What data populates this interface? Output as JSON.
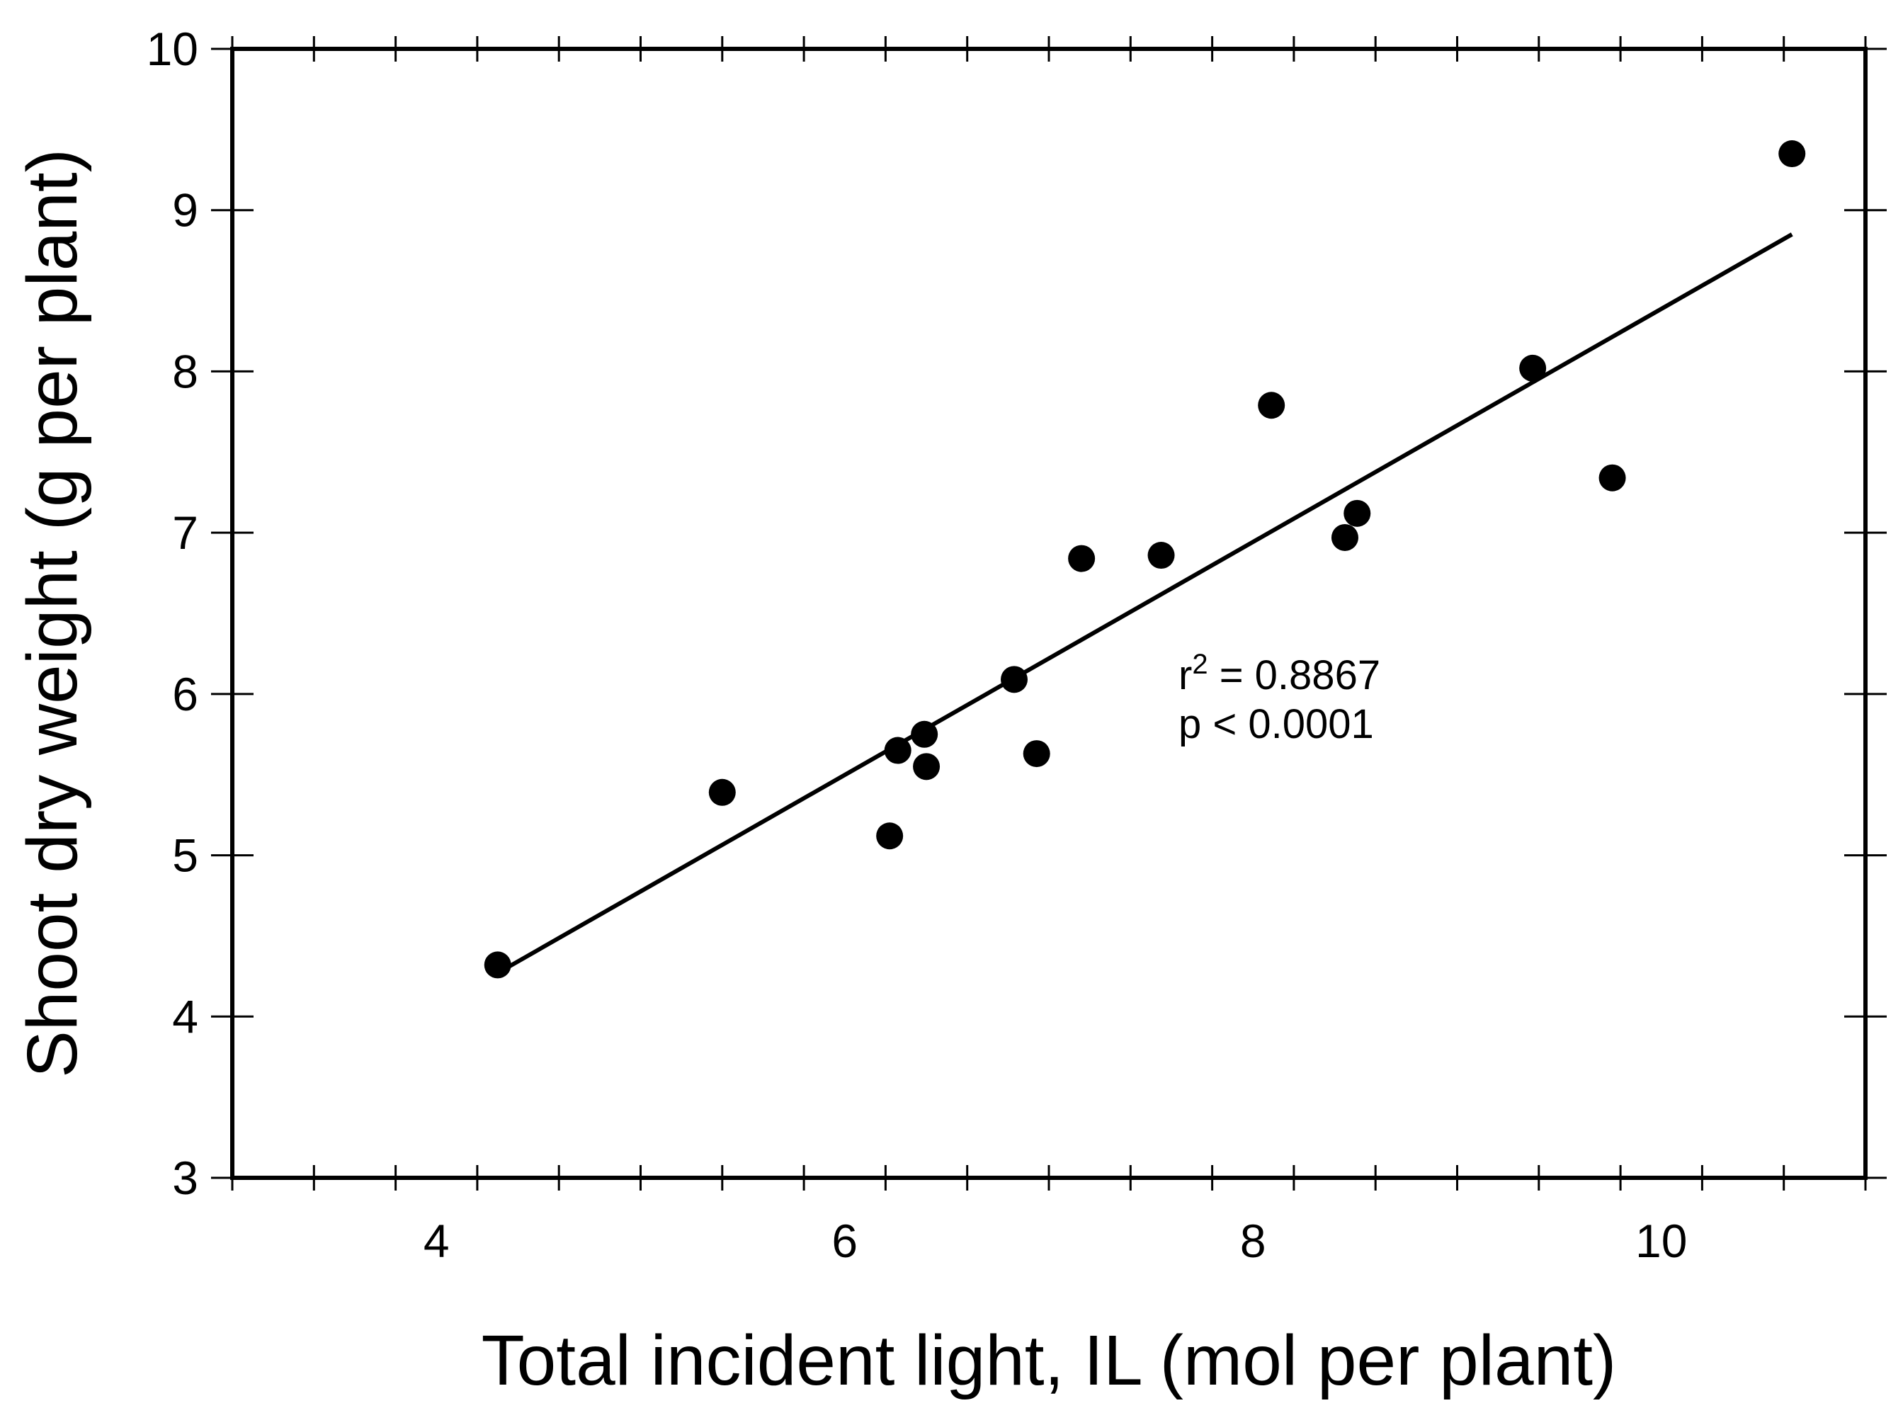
{
  "chart_data": {
    "type": "scatter",
    "title": "",
    "xlabel": "Total incident light, IL (mol per plant)",
    "ylabel": "Shoot dry weight (g per plant)",
    "xlim": [
      3,
      11
    ],
    "ylim": [
      3,
      10
    ],
    "x_major_ticks": [
      4,
      6,
      8,
      10
    ],
    "x_minor_step": 0.4,
    "y_major_ticks": [
      3,
      4,
      5,
      6,
      7,
      8,
      9,
      10
    ],
    "x_tick_labels": [
      "4",
      "6",
      "8",
      "10"
    ],
    "y_tick_labels": [
      "3",
      "4",
      "5",
      "6",
      "7",
      "8",
      "9",
      "10"
    ],
    "grid": false,
    "series": [
      {
        "name": "observations",
        "marker": "filled-circle",
        "color": "#000000",
        "points": [
          {
            "x": 4.3,
            "y": 4.32
          },
          {
            "x": 5.4,
            "y": 5.39
          },
          {
            "x": 6.22,
            "y": 5.12
          },
          {
            "x": 6.26,
            "y": 5.65
          },
          {
            "x": 6.39,
            "y": 5.75
          },
          {
            "x": 6.4,
            "y": 5.55
          },
          {
            "x": 6.83,
            "y": 6.09
          },
          {
            "x": 6.94,
            "y": 5.63
          },
          {
            "x": 7.16,
            "y": 6.84
          },
          {
            "x": 7.55,
            "y": 6.86
          },
          {
            "x": 8.09,
            "y": 7.79
          },
          {
            "x": 8.45,
            "y": 6.97
          },
          {
            "x": 8.51,
            "y": 7.12
          },
          {
            "x": 9.37,
            "y": 8.02
          },
          {
            "x": 9.76,
            "y": 7.34
          },
          {
            "x": 10.64,
            "y": 9.35
          }
        ]
      }
    ],
    "regression_line": {
      "x_start": 4.3,
      "y_start": 4.27,
      "x_end": 10.64,
      "y_end": 8.85,
      "color": "#000000"
    },
    "annotations": {
      "r_symbol": "r",
      "r_superscript": "2",
      "r_value": " = 0.8867",
      "p_text": "p < 0.0001"
    }
  }
}
